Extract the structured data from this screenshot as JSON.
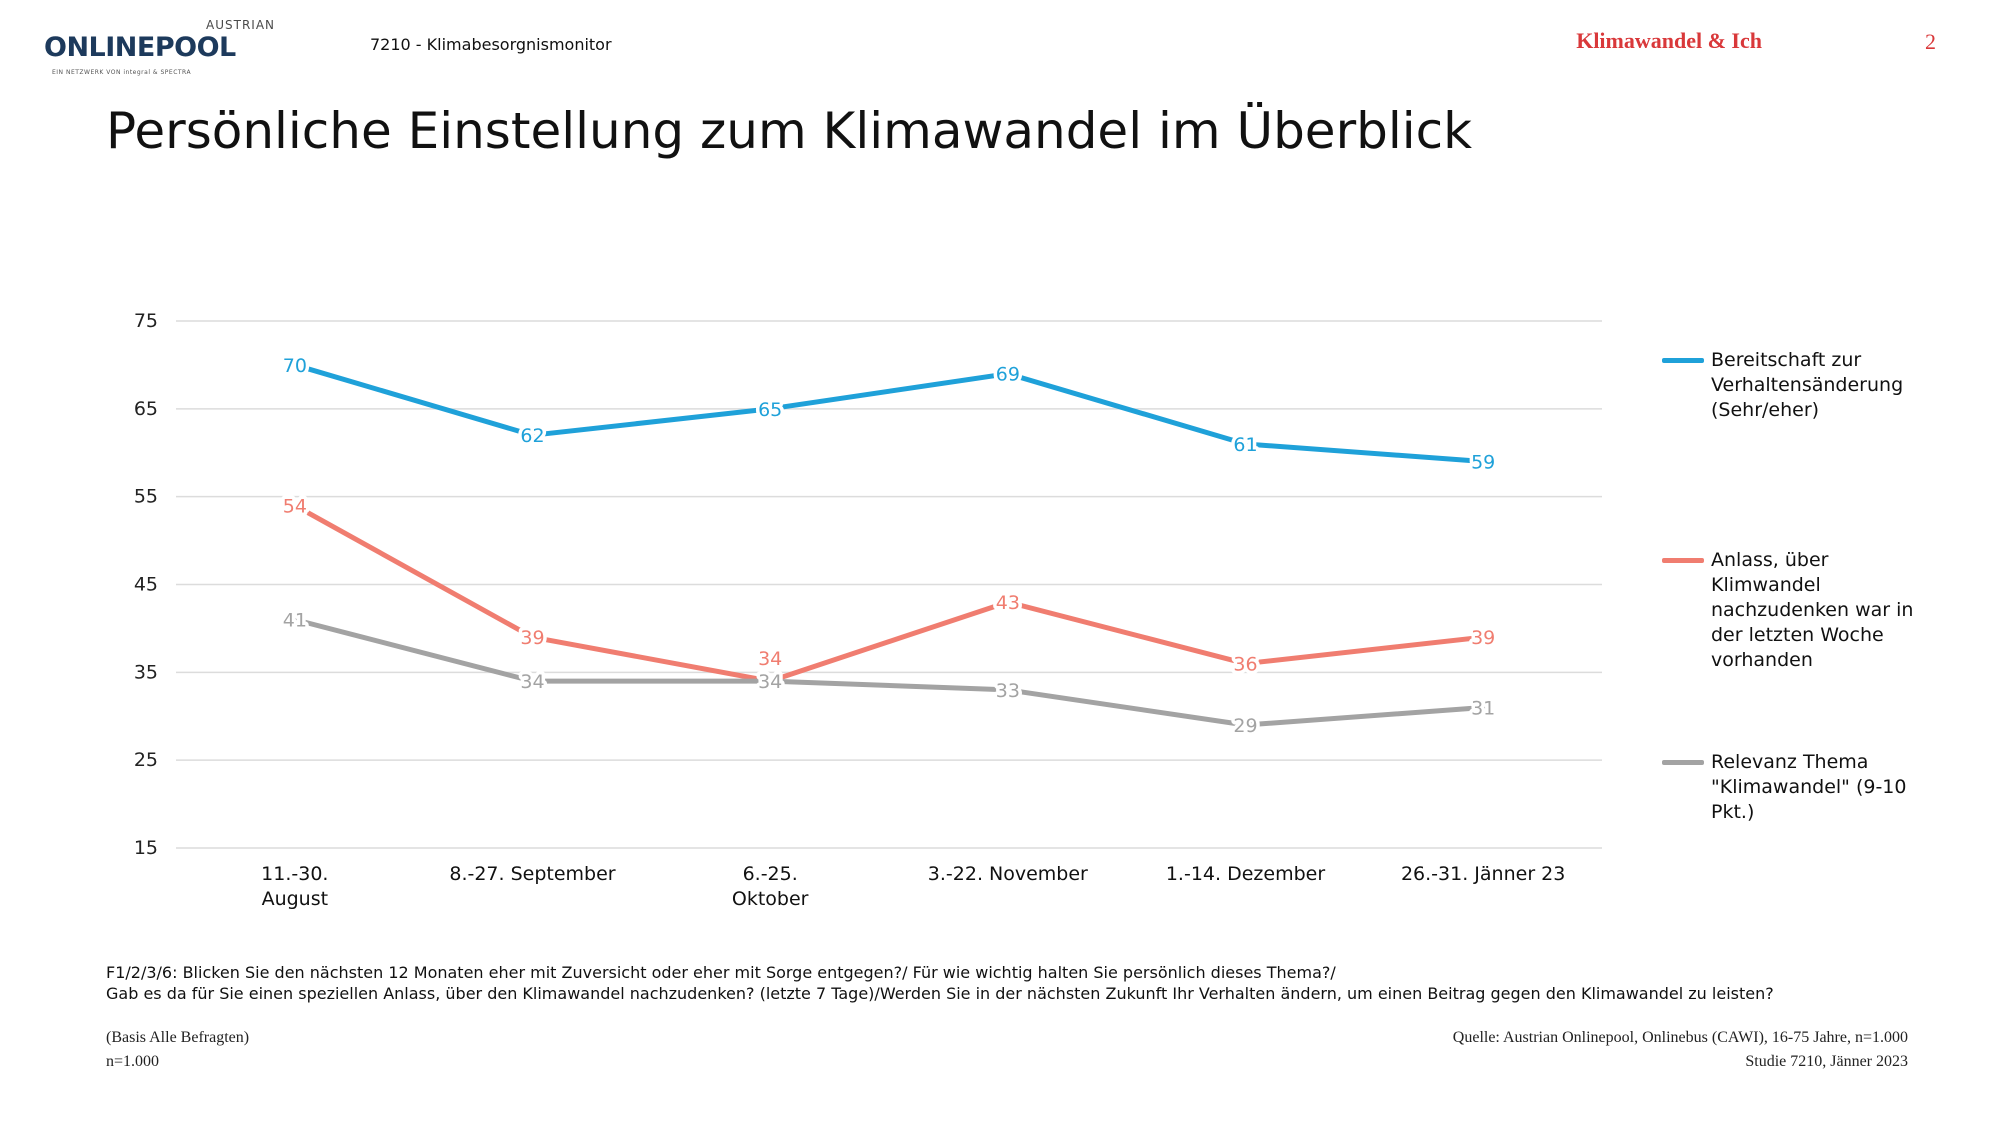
{
  "header": {
    "logo_top": "AUSTRIAN",
    "logo_main": "ONLINEPOOL",
    "logo_tagline": "EIN NETZWERK VON integral & SPECTRA",
    "study_id": "7210 - Klimabesorgnismonitor",
    "section": "Klimawandel & Ich",
    "page_number": "2"
  },
  "title": "Persönliche Einstellung zum Klimawandel im Überblick",
  "colors": {
    "blue": "#1fa1d9",
    "red": "#f07d70",
    "gray": "#a3a3a3",
    "accent": "#d9383a"
  },
  "chart_data": {
    "type": "line",
    "categories": [
      [
        "11.-30.",
        "August"
      ],
      [
        "8.-27. September"
      ],
      [
        "6.-25.",
        "Oktober"
      ],
      [
        "3.-22. November"
      ],
      [
        "1.-14. Dezember"
      ],
      [
        "26.-31. Jänner 23"
      ]
    ],
    "yticks": [
      15,
      25,
      35,
      45,
      55,
      65,
      75
    ],
    "ylim": [
      15,
      75
    ],
    "grid": true,
    "legend_position": "right",
    "series": [
      {
        "name": "Bereitschaft zur Verhaltensänderung (Sehr/eher)",
        "color": "#1fa1d9",
        "values": [
          70,
          62,
          65,
          69,
          61,
          59
        ],
        "labels": [
          "70",
          "62",
          "65",
          "69",
          "61",
          "59"
        ]
      },
      {
        "name": "Anlass, über Klimwandel nachzudenken war in der letzten Woche vorhanden",
        "color": "#f07d70",
        "values": [
          54,
          39,
          34,
          43,
          36,
          39
        ],
        "labels": [
          "54",
          "39",
          "34",
          "43",
          "36",
          "39"
        ]
      },
      {
        "name": "Relevanz Thema \"Klimawandel\" (9-10 Pkt.)",
        "color": "#a3a3a3",
        "values": [
          41,
          34,
          34,
          33,
          29,
          31
        ],
        "labels": [
          "41",
          "34",
          "34",
          "33",
          "29",
          "31"
        ]
      }
    ]
  },
  "legend": [
    {
      "lines": [
        "Bereitschaft zur",
        "Verhaltensänderung",
        "(Sehr/eher)"
      ]
    },
    {
      "lines": [
        "Anlass, über",
        "Klimwandel",
        "nachzudenken war in",
        "der letzten Woche",
        "vorhanden"
      ]
    },
    {
      "lines": [
        "Relevanz Thema",
        "\"Klimawandel\" (9-10",
        "Pkt.)"
      ]
    }
  ],
  "footnote": {
    "line1": "F1/2/3/6: Blicken Sie den nächsten 12 Monaten eher mit Zuversicht oder eher mit Sorge entgegen?/ Für wie wichtig halten Sie persönlich dieses Thema?/",
    "line2": "Gab es da für Sie einen speziellen Anlass, über den Klimawandel nachzudenken? (letzte 7 Tage)/Werden Sie in der nächsten Zukunft Ihr Verhalten ändern, um einen Beitrag gegen den Klimawandel zu leisten?"
  },
  "basis": {
    "line1": "(Basis Alle Befragten)",
    "line2": "n=1.000"
  },
  "source": {
    "line1": "Quelle: Austrian Onlinepool, Onlinebus (CAWI), 16-75 Jahre, n=1.000",
    "line2": "Studie 7210, Jänner 2023"
  }
}
